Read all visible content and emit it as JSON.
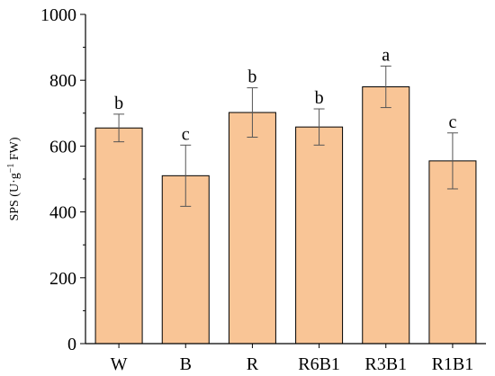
{
  "chart_data": {
    "type": "bar",
    "categories": [
      "W",
      "B",
      "R",
      "R6B1",
      "R3B1",
      "R1B1"
    ],
    "values": [
      655,
      510,
      702,
      658,
      780,
      555
    ],
    "errors": [
      42,
      93,
      75,
      55,
      63,
      85
    ],
    "significance": [
      "b",
      "c",
      "b",
      "b",
      "a",
      "c"
    ],
    "ylabel_parts": [
      "SPS (U·g",
      "−1",
      " FW)"
    ],
    "ylim": [
      0,
      1000
    ],
    "yticks": [
      "0",
      "200",
      "400",
      "600",
      "800",
      "1000"
    ],
    "bar_color": "#f9c596",
    "bar_edge_color": "#000000",
    "error_color": "#555555",
    "grid": false
  }
}
